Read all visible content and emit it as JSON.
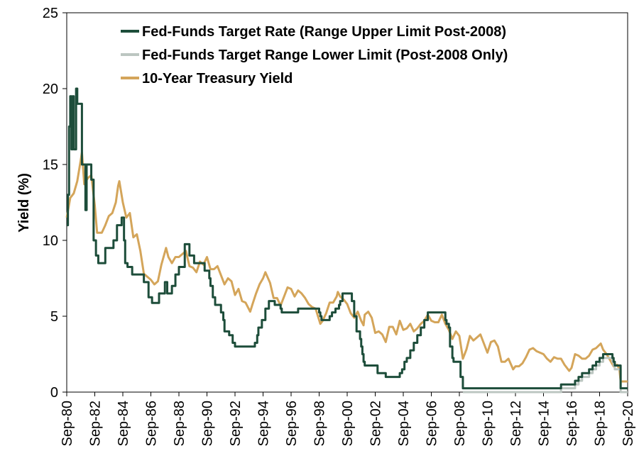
{
  "chart_data": {
    "type": "line",
    "title": "",
    "xlabel": "",
    "ylabel": "Yield (%)",
    "xlim": [
      "1980-09",
      "2020-09"
    ],
    "ylim": [
      0,
      25
    ],
    "y_ticks": [
      0,
      5,
      10,
      15,
      20,
      25
    ],
    "x_ticks": [
      "Sep-80",
      "Sep-82",
      "Sep-84",
      "Sep-86",
      "Sep-88",
      "Sep-90",
      "Sep-92",
      "Sep-94",
      "Sep-96",
      "Sep-98",
      "Sep-00",
      "Sep-02",
      "Sep-04",
      "Sep-06",
      "Sep-08",
      "Sep-10",
      "Sep-12",
      "Sep-14",
      "Sep-16",
      "Sep-18",
      "Sep-20"
    ],
    "grid": false,
    "legend_position": "top",
    "series": [
      {
        "name": "Fed-Funds Target Rate (Range Upper Limit Post-2008)",
        "color": "#1d4d3a",
        "step": true,
        "points": [
          [
            "1980-09",
            11.0
          ],
          [
            "1980-10",
            13.0
          ],
          [
            "1980-11",
            17.5
          ],
          [
            "1980-12",
            19.5
          ],
          [
            "1981-01",
            16.0
          ],
          [
            "1981-02",
            19.5
          ],
          [
            "1981-03",
            16.0
          ],
          [
            "1981-05",
            20.0
          ],
          [
            "1981-06",
            19.0
          ],
          [
            "1981-09",
            19.0
          ],
          [
            "1981-10",
            15.0
          ],
          [
            "1982-01",
            12.0
          ],
          [
            "1982-02",
            15.0
          ],
          [
            "1982-06",
            14.0
          ],
          [
            "1982-08",
            10.0
          ],
          [
            "1982-10",
            9.0
          ],
          [
            "1982-12",
            8.5
          ],
          [
            "1983-06",
            9.5
          ],
          [
            "1984-01",
            10.0
          ],
          [
            "1984-04",
            11.0
          ],
          [
            "1984-08",
            11.5
          ],
          [
            "1984-10",
            10.0
          ],
          [
            "1984-11",
            8.5
          ],
          [
            "1985-01",
            8.25
          ],
          [
            "1985-05",
            7.75
          ],
          [
            "1986-03",
            7.25
          ],
          [
            "1986-07",
            6.25
          ],
          [
            "1986-10",
            5.875
          ],
          [
            "1987-04",
            6.5
          ],
          [
            "1987-09",
            7.25
          ],
          [
            "1987-11",
            6.5
          ],
          [
            "1988-03",
            7.0
          ],
          [
            "1988-06",
            7.75
          ],
          [
            "1988-09",
            8.25
          ],
          [
            "1989-02",
            9.75
          ],
          [
            "1989-06",
            9.0
          ],
          [
            "1989-10",
            8.5
          ],
          [
            "1990-07",
            8.0
          ],
          [
            "1990-11",
            7.5
          ],
          [
            "1990-12",
            7.0
          ],
          [
            "1991-02",
            6.25
          ],
          [
            "1991-04",
            5.75
          ],
          [
            "1991-09",
            5.25
          ],
          [
            "1991-11",
            4.75
          ],
          [
            "1991-12",
            4.0
          ],
          [
            "1992-04",
            3.75
          ],
          [
            "1992-07",
            3.25
          ],
          [
            "1992-09",
            3.0
          ],
          [
            "1994-02",
            3.25
          ],
          [
            "1994-04",
            3.75
          ],
          [
            "1994-05",
            4.25
          ],
          [
            "1994-08",
            4.75
          ],
          [
            "1994-11",
            5.5
          ],
          [
            "1995-02",
            6.0
          ],
          [
            "1995-07",
            5.75
          ],
          [
            "1995-12",
            5.5
          ],
          [
            "1996-01",
            5.25
          ],
          [
            "1997-03",
            5.5
          ],
          [
            "1998-09",
            5.25
          ],
          [
            "1998-10",
            5.0
          ],
          [
            "1998-11",
            4.75
          ],
          [
            "1999-06",
            5.0
          ],
          [
            "1999-08",
            5.25
          ],
          [
            "1999-11",
            5.5
          ],
          [
            "2000-02",
            5.75
          ],
          [
            "2000-03",
            6.0
          ],
          [
            "2000-05",
            6.5
          ],
          [
            "2001-01",
            6.0
          ],
          [
            "2001-03",
            5.0
          ],
          [
            "2001-05",
            4.0
          ],
          [
            "2001-08",
            3.5
          ],
          [
            "2001-09",
            3.0
          ],
          [
            "2001-10",
            2.5
          ],
          [
            "2001-11",
            2.0
          ],
          [
            "2001-12",
            1.75
          ],
          [
            "2002-11",
            1.25
          ],
          [
            "2003-06",
            1.0
          ],
          [
            "2004-06",
            1.25
          ],
          [
            "2004-08",
            1.5
          ],
          [
            "2004-10",
            2.0
          ],
          [
            "2004-12",
            2.25
          ],
          [
            "2005-03",
            2.75
          ],
          [
            "2005-06",
            3.25
          ],
          [
            "2005-09",
            3.75
          ],
          [
            "2005-12",
            4.25
          ],
          [
            "2006-03",
            4.75
          ],
          [
            "2006-06",
            5.25
          ],
          [
            "2007-09",
            4.75
          ],
          [
            "2007-10",
            4.5
          ],
          [
            "2007-12",
            4.25
          ],
          [
            "2008-01",
            3.0
          ],
          [
            "2008-03",
            2.25
          ],
          [
            "2008-04",
            2.0
          ],
          [
            "2008-10",
            1.0
          ],
          [
            "2008-12",
            0.25
          ],
          [
            "2015-12",
            0.5
          ],
          [
            "2016-12",
            0.75
          ],
          [
            "2017-03",
            1.0
          ],
          [
            "2017-06",
            1.25
          ],
          [
            "2017-12",
            1.5
          ],
          [
            "2018-03",
            1.75
          ],
          [
            "2018-06",
            2.0
          ],
          [
            "2018-09",
            2.25
          ],
          [
            "2018-12",
            2.5
          ],
          [
            "2019-08",
            2.25
          ],
          [
            "2019-09",
            2.0
          ],
          [
            "2019-10",
            1.75
          ],
          [
            "2020-03",
            0.25
          ],
          [
            "2020-09",
            0.25
          ]
        ]
      },
      {
        "name": "Fed-Funds Target Range Lower Limit (Post-2008 Only)",
        "color": "#bcc6c1",
        "step": true,
        "points": [
          [
            "2008-12",
            0.0
          ],
          [
            "2015-12",
            0.25
          ],
          [
            "2016-12",
            0.5
          ],
          [
            "2017-03",
            0.75
          ],
          [
            "2017-06",
            1.0
          ],
          [
            "2017-12",
            1.25
          ],
          [
            "2018-03",
            1.5
          ],
          [
            "2018-06",
            1.75
          ],
          [
            "2018-09",
            2.0
          ],
          [
            "2018-12",
            2.25
          ],
          [
            "2019-08",
            2.0
          ],
          [
            "2019-09",
            1.75
          ],
          [
            "2019-10",
            1.5
          ],
          [
            "2020-03",
            0.0
          ],
          [
            "2020-09",
            0.0
          ]
        ]
      },
      {
        "name": "10-Year Treasury Yield",
        "color": "#d4a55a",
        "step": false,
        "points": [
          [
            "1980-09",
            11.5
          ],
          [
            "1980-12",
            12.8
          ],
          [
            "1981-03",
            13.1
          ],
          [
            "1981-06",
            13.9
          ],
          [
            "1981-09",
            15.3
          ],
          [
            "1981-10",
            15.8
          ],
          [
            "1981-12",
            13.7
          ],
          [
            "1982-03",
            14.1
          ],
          [
            "1982-06",
            14.3
          ],
          [
            "1982-09",
            12.3
          ],
          [
            "1982-11",
            10.5
          ],
          [
            "1983-03",
            10.5
          ],
          [
            "1983-06",
            11.0
          ],
          [
            "1983-09",
            11.6
          ],
          [
            "1983-12",
            11.8
          ],
          [
            "1984-03",
            12.5
          ],
          [
            "1984-05",
            13.6
          ],
          [
            "1984-06",
            13.9
          ],
          [
            "1984-09",
            12.5
          ],
          [
            "1984-12",
            11.5
          ],
          [
            "1985-03",
            11.8
          ],
          [
            "1985-06",
            10.2
          ],
          [
            "1985-09",
            10.4
          ],
          [
            "1985-12",
            9.3
          ],
          [
            "1986-03",
            7.8
          ],
          [
            "1986-06",
            7.6
          ],
          [
            "1986-09",
            7.4
          ],
          [
            "1986-12",
            7.1
          ],
          [
            "1987-03",
            7.3
          ],
          [
            "1987-06",
            8.4
          ],
          [
            "1987-10",
            9.5
          ],
          [
            "1987-12",
            8.9
          ],
          [
            "1988-03",
            8.5
          ],
          [
            "1988-06",
            8.9
          ],
          [
            "1988-09",
            8.9
          ],
          [
            "1988-12",
            9.1
          ],
          [
            "1989-03",
            9.3
          ],
          [
            "1989-06",
            8.3
          ],
          [
            "1989-09",
            8.2
          ],
          [
            "1989-12",
            7.9
          ],
          [
            "1990-03",
            8.6
          ],
          [
            "1990-06",
            8.4
          ],
          [
            "1990-09",
            8.9
          ],
          [
            "1990-12",
            8.1
          ],
          [
            "1991-03",
            8.1
          ],
          [
            "1991-06",
            8.3
          ],
          [
            "1991-09",
            7.7
          ],
          [
            "1991-12",
            7.1
          ],
          [
            "1992-03",
            7.5
          ],
          [
            "1992-06",
            7.3
          ],
          [
            "1992-09",
            6.4
          ],
          [
            "1992-12",
            6.8
          ],
          [
            "1993-03",
            6.0
          ],
          [
            "1993-06",
            5.9
          ],
          [
            "1993-10",
            5.3
          ],
          [
            "1993-12",
            5.8
          ],
          [
            "1994-03",
            6.5
          ],
          [
            "1994-06",
            7.1
          ],
          [
            "1994-09",
            7.5
          ],
          [
            "1994-11",
            7.9
          ],
          [
            "1995-03",
            7.2
          ],
          [
            "1995-06",
            6.2
          ],
          [
            "1995-09",
            6.2
          ],
          [
            "1995-12",
            5.7
          ],
          [
            "1996-03",
            6.3
          ],
          [
            "1996-06",
            6.9
          ],
          [
            "1996-09",
            6.8
          ],
          [
            "1996-12",
            6.3
          ],
          [
            "1997-03",
            6.7
          ],
          [
            "1997-06",
            6.5
          ],
          [
            "1997-09",
            6.2
          ],
          [
            "1997-12",
            5.8
          ],
          [
            "1998-03",
            5.6
          ],
          [
            "1998-06",
            5.5
          ],
          [
            "1998-10",
            4.5
          ],
          [
            "1998-12",
            4.7
          ],
          [
            "1999-03",
            5.2
          ],
          [
            "1999-06",
            5.9
          ],
          [
            "1999-09",
            5.9
          ],
          [
            "1999-12",
            6.3
          ],
          [
            "2000-01",
            6.6
          ],
          [
            "2000-03",
            6.3
          ],
          [
            "2000-06",
            6.1
          ],
          [
            "2000-09",
            5.8
          ],
          [
            "2000-12",
            5.2
          ],
          [
            "2001-03",
            4.9
          ],
          [
            "2001-06",
            5.3
          ],
          [
            "2001-09",
            4.7
          ],
          [
            "2001-11",
            4.4
          ],
          [
            "2001-12",
            5.1
          ],
          [
            "2002-03",
            5.3
          ],
          [
            "2002-06",
            4.9
          ],
          [
            "2002-09",
            3.9
          ],
          [
            "2002-12",
            4.0
          ],
          [
            "2003-03",
            3.8
          ],
          [
            "2003-06",
            3.3
          ],
          [
            "2003-09",
            4.3
          ],
          [
            "2003-12",
            4.3
          ],
          [
            "2004-03",
            3.8
          ],
          [
            "2004-06",
            4.7
          ],
          [
            "2004-09",
            4.1
          ],
          [
            "2004-12",
            4.2
          ],
          [
            "2005-03",
            4.5
          ],
          [
            "2005-06",
            4.0
          ],
          [
            "2005-09",
            4.2
          ],
          [
            "2005-12",
            4.5
          ],
          [
            "2006-03",
            4.7
          ],
          [
            "2006-06",
            5.1
          ],
          [
            "2006-09",
            4.7
          ],
          [
            "2006-12",
            4.6
          ],
          [
            "2007-03",
            4.6
          ],
          [
            "2007-06",
            5.1
          ],
          [
            "2007-09",
            4.5
          ],
          [
            "2007-12",
            4.1
          ],
          [
            "2008-03",
            3.5
          ],
          [
            "2008-06",
            4.0
          ],
          [
            "2008-09",
            3.7
          ],
          [
            "2008-12",
            2.2
          ],
          [
            "2009-03",
            2.8
          ],
          [
            "2009-06",
            3.7
          ],
          [
            "2009-09",
            3.4
          ],
          [
            "2009-12",
            3.6
          ],
          [
            "2010-03",
            3.8
          ],
          [
            "2010-06",
            3.2
          ],
          [
            "2010-09",
            2.6
          ],
          [
            "2010-12",
            3.3
          ],
          [
            "2011-03",
            3.4
          ],
          [
            "2011-06",
            3.0
          ],
          [
            "2011-09",
            2.0
          ],
          [
            "2011-12",
            2.0
          ],
          [
            "2012-03",
            2.2
          ],
          [
            "2012-07",
            1.5
          ],
          [
            "2012-09",
            1.7
          ],
          [
            "2012-12",
            1.7
          ],
          [
            "2013-03",
            1.9
          ],
          [
            "2013-06",
            2.3
          ],
          [
            "2013-09",
            2.8
          ],
          [
            "2013-12",
            2.9
          ],
          [
            "2014-03",
            2.7
          ],
          [
            "2014-06",
            2.6
          ],
          [
            "2014-09",
            2.5
          ],
          [
            "2014-12",
            2.2
          ],
          [
            "2015-03",
            2.0
          ],
          [
            "2015-06",
            2.3
          ],
          [
            "2015-09",
            2.2
          ],
          [
            "2015-12",
            2.2
          ],
          [
            "2016-03",
            1.8
          ],
          [
            "2016-07",
            1.4
          ],
          [
            "2016-09",
            1.6
          ],
          [
            "2016-12",
            2.5
          ],
          [
            "2017-03",
            2.4
          ],
          [
            "2017-06",
            2.2
          ],
          [
            "2017-09",
            2.2
          ],
          [
            "2017-12",
            2.4
          ],
          [
            "2018-03",
            2.8
          ],
          [
            "2018-06",
            2.9
          ],
          [
            "2018-10",
            3.2
          ],
          [
            "2018-12",
            2.8
          ],
          [
            "2019-03",
            2.5
          ],
          [
            "2019-06",
            2.1
          ],
          [
            "2019-09",
            1.7
          ],
          [
            "2019-12",
            1.8
          ],
          [
            "2020-02",
            1.5
          ],
          [
            "2020-03",
            0.7
          ],
          [
            "2020-06",
            0.7
          ],
          [
            "2020-09",
            0.7
          ]
        ]
      }
    ]
  }
}
